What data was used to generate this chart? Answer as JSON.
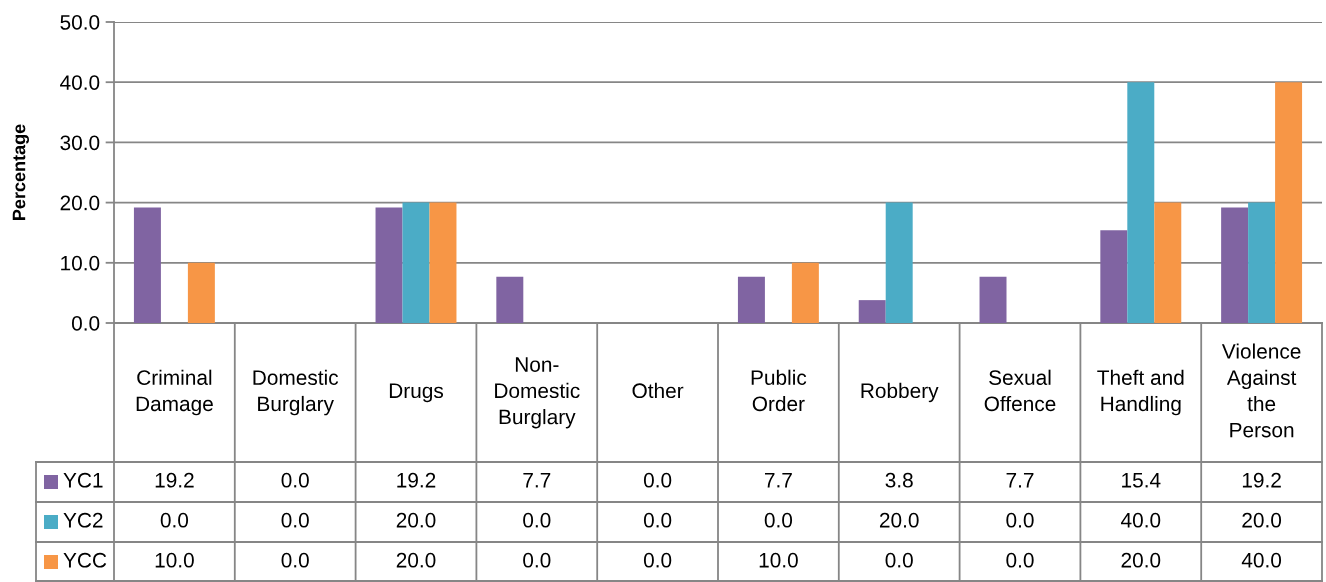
{
  "chart_data": {
    "type": "bar",
    "ylabel": "Percentage",
    "categories": [
      "Criminal\nDamage",
      "Domestic\nBurglary",
      "Drugs",
      "Non-\nDomestic\nBurglary",
      "Other",
      "Public\nOrder",
      "Robbery",
      "Sexual\nOffence",
      "Theft and\nHandling",
      "Violence\nAgainst\nthe\nPerson"
    ],
    "series": [
      {
        "name": "YC1",
        "color": "#8064a2",
        "values": [
          19.2,
          0.0,
          19.2,
          7.7,
          0.0,
          7.7,
          3.8,
          7.7,
          15.4,
          19.2
        ],
        "value_labels": [
          "19.2",
          "0.0",
          "19.2",
          "7.7",
          "0.0",
          "7.7",
          "3.8",
          "7.7",
          "15.4",
          "19.2"
        ]
      },
      {
        "name": "YC2",
        "color": "#4bacc6",
        "values": [
          0.0,
          0.0,
          20.0,
          0.0,
          0.0,
          0.0,
          20.0,
          0.0,
          40.0,
          20.0
        ],
        "value_labels": [
          "0.0",
          "0.0",
          "20.0",
          "0.0",
          "0.0",
          "0.0",
          "20.0",
          "0.0",
          "40.0",
          "20.0"
        ]
      },
      {
        "name": "YCC",
        "color": "#f79646",
        "values": [
          10.0,
          0.0,
          20.0,
          0.0,
          0.0,
          10.0,
          0.0,
          0.0,
          20.0,
          40.0
        ],
        "value_labels": [
          "10.0",
          "0.0",
          "20.0",
          "0.0",
          "0.0",
          "10.0",
          "0.0",
          "0.0",
          "20.0",
          "40.0"
        ]
      }
    ],
    "ylim": [
      0,
      50
    ],
    "yticks": [
      {
        "value": 0,
        "label": "0.0"
      },
      {
        "value": 10,
        "label": "10.0"
      },
      {
        "value": 20,
        "label": "20.0"
      },
      {
        "value": 30,
        "label": "30.0"
      },
      {
        "value": 40,
        "label": "40.0"
      },
      {
        "value": 50,
        "label": "50.0"
      }
    ],
    "grid": "y",
    "legend": "left"
  }
}
